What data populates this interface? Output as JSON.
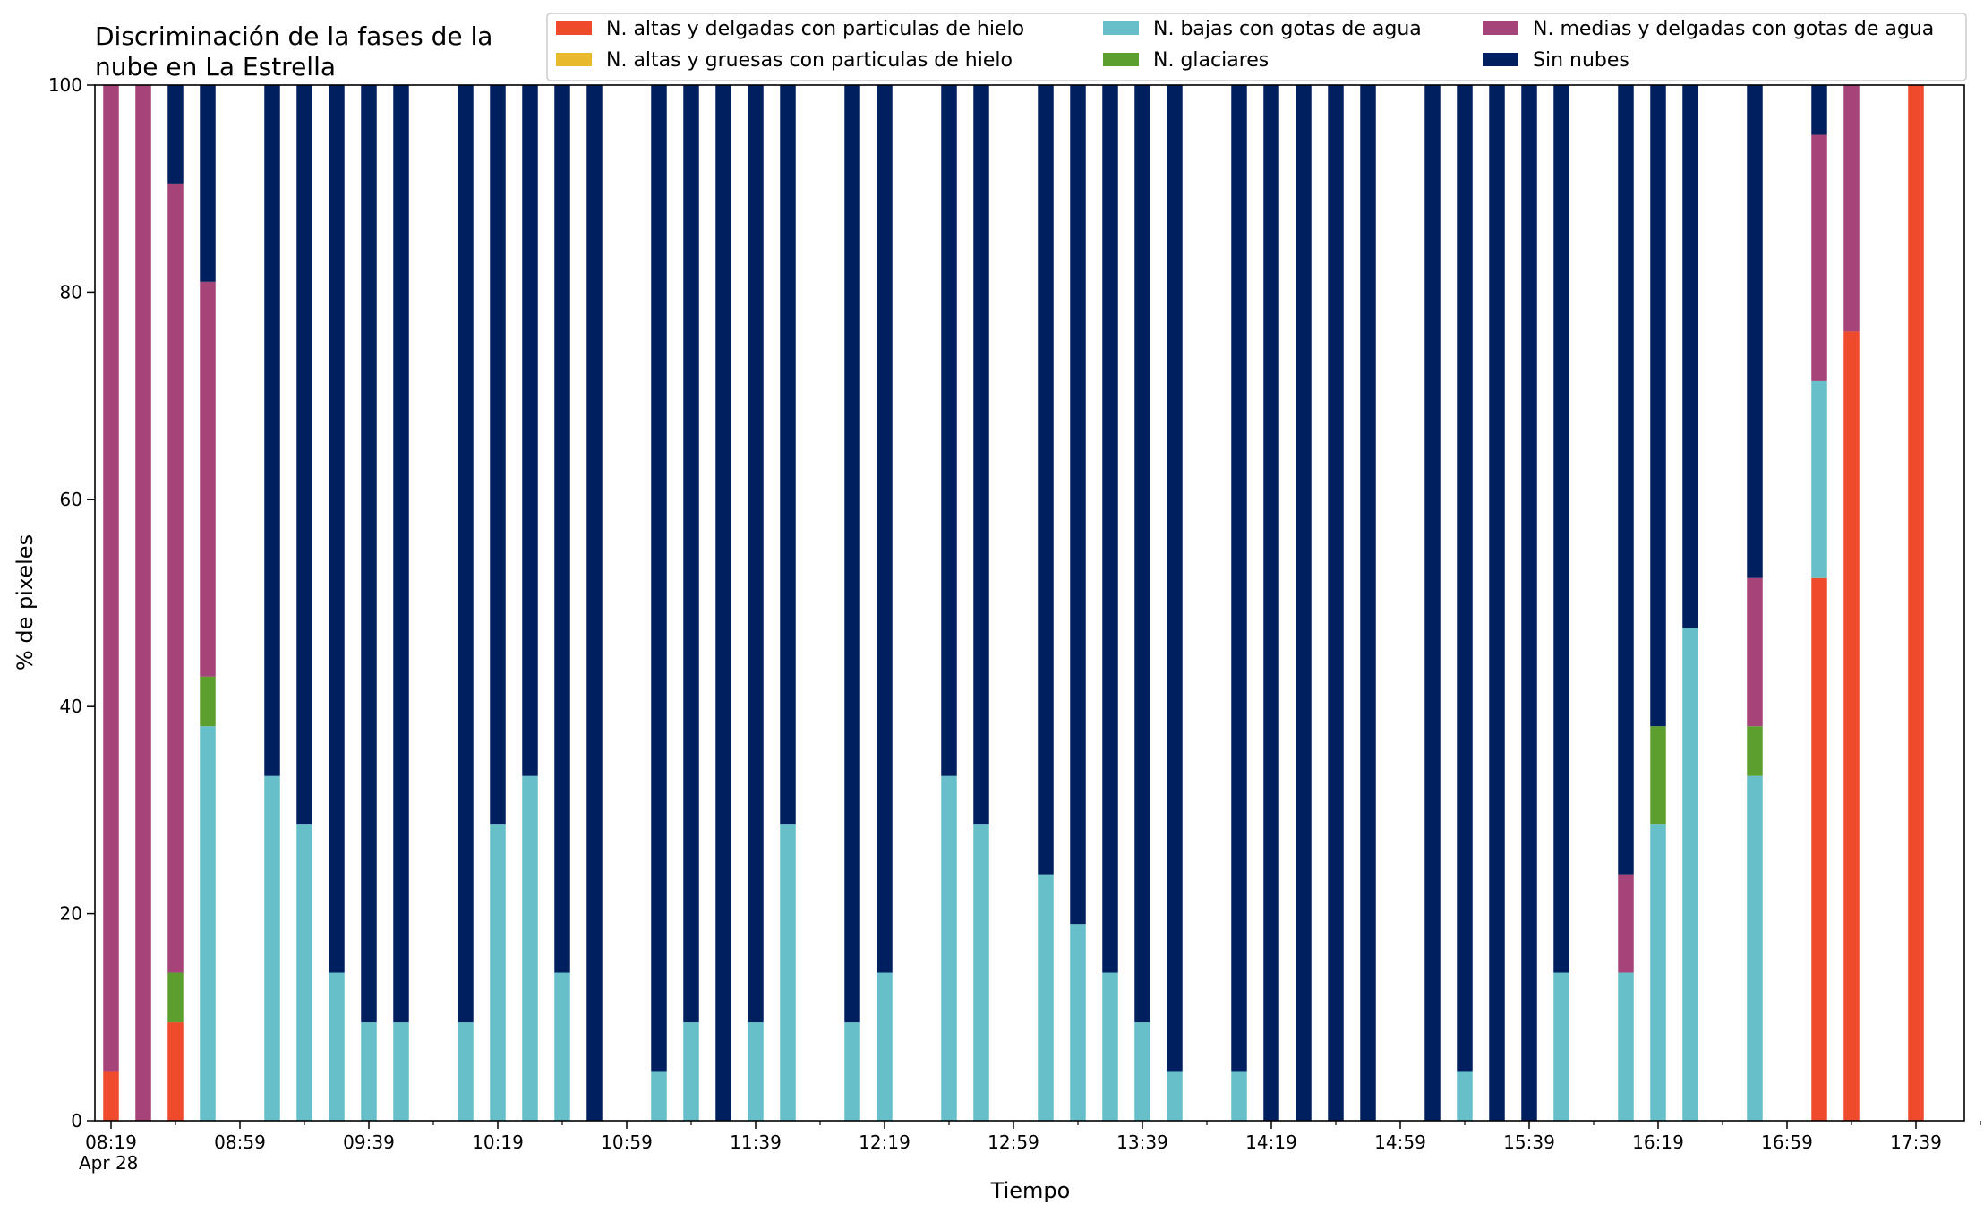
{
  "chart_data": {
    "type": "bar",
    "stacked": true,
    "title_lines": [
      "Discriminación de la fases de la",
      "nube en La Estrella"
    ],
    "xlabel": "Tiempo",
    "ylabel": "% de pixeles",
    "ylim": [
      0,
      100
    ],
    "yticks": [
      0,
      20,
      40,
      60,
      80,
      100
    ],
    "xlim": [
      "08:14",
      "17:54"
    ],
    "date_label": "Apr 28",
    "xticks_major": [
      "08:19",
      "08:59",
      "09:39",
      "10:19",
      "10:59",
      "11:39",
      "12:19",
      "12:59",
      "13:39",
      "14:19",
      "14:59",
      "15:39",
      "16:19",
      "16:59",
      "17:39"
    ],
    "xticks_minor": [
      "08:39",
      "09:19",
      "09:59",
      "10:39",
      "11:19",
      "11:59",
      "12:39",
      "13:19",
      "13:59",
      "14:39",
      "15:19",
      "15:59",
      "16:39",
      "17:19",
      "17:59"
    ],
    "grid": false,
    "legend_position": "top-right",
    "series": [
      {
        "key": "alt_del",
        "name": "N. altas y delgadas con particulas de hielo",
        "color": "#ee4a2b"
      },
      {
        "key": "alt_gru",
        "name": "N. altas y gruesas con particulas de hielo",
        "color": "#e8b92a"
      },
      {
        "key": "baj",
        "name": "N. bajas con gotas de agua",
        "color": "#67bfca"
      },
      {
        "key": "gla",
        "name": "N. glaciares",
        "color": "#5d9f2e"
      },
      {
        "key": "med",
        "name": "N. medias y delgadas con gotas de agua",
        "color": "#a6447a"
      },
      {
        "key": "sin",
        "name": "Sin nubes",
        "color": "#001f5f"
      }
    ],
    "bars": [
      {
        "x": "08:19",
        "alt_del": 4.8,
        "alt_gru": 0,
        "baj": 0,
        "gla": 0,
        "med": 95.2,
        "sin": 0
      },
      {
        "x": "08:29",
        "alt_del": 0,
        "alt_gru": 0,
        "baj": 0,
        "gla": 0,
        "med": 100,
        "sin": 0
      },
      {
        "x": "08:39",
        "alt_del": 9.5,
        "alt_gru": 0,
        "baj": 0,
        "gla": 4.8,
        "med": 76.2,
        "sin": 9.5
      },
      {
        "x": "08:49",
        "alt_del": 0,
        "alt_gru": 0,
        "baj": 38.1,
        "gla": 4.8,
        "med": 38.1,
        "sin": 19.0
      },
      {
        "x": "09:09",
        "alt_del": 0,
        "alt_gru": 0,
        "baj": 33.3,
        "gla": 0,
        "med": 0,
        "sin": 66.7
      },
      {
        "x": "09:19",
        "alt_del": 0,
        "alt_gru": 0,
        "baj": 28.6,
        "gla": 0,
        "med": 0,
        "sin": 71.4
      },
      {
        "x": "09:29",
        "alt_del": 0,
        "alt_gru": 0,
        "baj": 14.3,
        "gla": 0,
        "med": 0,
        "sin": 85.7
      },
      {
        "x": "09:39",
        "alt_del": 0,
        "alt_gru": 0,
        "baj": 9.5,
        "gla": 0,
        "med": 0,
        "sin": 90.5
      },
      {
        "x": "09:49",
        "alt_del": 0,
        "alt_gru": 0,
        "baj": 9.5,
        "gla": 0,
        "med": 0,
        "sin": 90.5
      },
      {
        "x": "10:09",
        "alt_del": 0,
        "alt_gru": 0,
        "baj": 9.5,
        "gla": 0,
        "med": 0,
        "sin": 90.5
      },
      {
        "x": "10:19",
        "alt_del": 0,
        "alt_gru": 0,
        "baj": 28.6,
        "gla": 0,
        "med": 0,
        "sin": 71.4
      },
      {
        "x": "10:29",
        "alt_del": 0,
        "alt_gru": 0,
        "baj": 33.3,
        "gla": 0,
        "med": 0,
        "sin": 66.7
      },
      {
        "x": "10:39",
        "alt_del": 0,
        "alt_gru": 0,
        "baj": 14.3,
        "gla": 0,
        "med": 0,
        "sin": 85.7
      },
      {
        "x": "10:49",
        "alt_del": 0,
        "alt_gru": 0,
        "baj": 0,
        "gla": 0,
        "med": 0,
        "sin": 100
      },
      {
        "x": "11:09",
        "alt_del": 0,
        "alt_gru": 0,
        "baj": 4.8,
        "gla": 0,
        "med": 0,
        "sin": 95.2
      },
      {
        "x": "11:19",
        "alt_del": 0,
        "alt_gru": 0,
        "baj": 9.5,
        "gla": 0,
        "med": 0,
        "sin": 90.5
      },
      {
        "x": "11:29",
        "alt_del": 0,
        "alt_gru": 0,
        "baj": 0,
        "gla": 0,
        "med": 0,
        "sin": 100
      },
      {
        "x": "11:39",
        "alt_del": 0,
        "alt_gru": 0,
        "baj": 9.5,
        "gla": 0,
        "med": 0,
        "sin": 90.5
      },
      {
        "x": "11:49",
        "alt_del": 0,
        "alt_gru": 0,
        "baj": 28.6,
        "gla": 0,
        "med": 0,
        "sin": 71.4
      },
      {
        "x": "12:09",
        "alt_del": 0,
        "alt_gru": 0,
        "baj": 9.5,
        "gla": 0,
        "med": 0,
        "sin": 90.5
      },
      {
        "x": "12:19",
        "alt_del": 0,
        "alt_gru": 0,
        "baj": 14.3,
        "gla": 0,
        "med": 0,
        "sin": 85.7
      },
      {
        "x": "12:39",
        "alt_del": 0,
        "alt_gru": 0,
        "baj": 33.3,
        "gla": 0,
        "med": 0,
        "sin": 66.7
      },
      {
        "x": "12:49",
        "alt_del": 0,
        "alt_gru": 0,
        "baj": 28.6,
        "gla": 0,
        "med": 0,
        "sin": 71.4
      },
      {
        "x": "13:09",
        "alt_del": 0,
        "alt_gru": 0,
        "baj": 23.8,
        "gla": 0,
        "med": 0,
        "sin": 76.2
      },
      {
        "x": "13:19",
        "alt_del": 0,
        "alt_gru": 0,
        "baj": 19.0,
        "gla": 0,
        "med": 0,
        "sin": 81.0
      },
      {
        "x": "13:29",
        "alt_del": 0,
        "alt_gru": 0,
        "baj": 14.3,
        "gla": 0,
        "med": 0,
        "sin": 85.7
      },
      {
        "x": "13:39",
        "alt_del": 0,
        "alt_gru": 0,
        "baj": 9.5,
        "gla": 0,
        "med": 0,
        "sin": 90.5
      },
      {
        "x": "13:49",
        "alt_del": 0,
        "alt_gru": 0,
        "baj": 4.8,
        "gla": 0,
        "med": 0,
        "sin": 95.2
      },
      {
        "x": "14:09",
        "alt_del": 0,
        "alt_gru": 0,
        "baj": 4.8,
        "gla": 0,
        "med": 0,
        "sin": 95.2
      },
      {
        "x": "14:19",
        "alt_del": 0,
        "alt_gru": 0,
        "baj": 0,
        "gla": 0,
        "med": 0,
        "sin": 100
      },
      {
        "x": "14:29",
        "alt_del": 0,
        "alt_gru": 0,
        "baj": 0,
        "gla": 0,
        "med": 0,
        "sin": 100
      },
      {
        "x": "14:39",
        "alt_del": 0,
        "alt_gru": 0,
        "baj": 0,
        "gla": 0,
        "med": 0,
        "sin": 100
      },
      {
        "x": "14:49",
        "alt_del": 0,
        "alt_gru": 0,
        "baj": 0,
        "gla": 0,
        "med": 0,
        "sin": 100
      },
      {
        "x": "15:09",
        "alt_del": 0,
        "alt_gru": 0,
        "baj": 0,
        "gla": 0,
        "med": 0,
        "sin": 100
      },
      {
        "x": "15:19",
        "alt_del": 0,
        "alt_gru": 0,
        "baj": 4.8,
        "gla": 0,
        "med": 0,
        "sin": 95.2
      },
      {
        "x": "15:29",
        "alt_del": 0,
        "alt_gru": 0,
        "baj": 0,
        "gla": 0,
        "med": 0,
        "sin": 100
      },
      {
        "x": "15:39",
        "alt_del": 0,
        "alt_gru": 0,
        "baj": 0,
        "gla": 0,
        "med": 0,
        "sin": 100
      },
      {
        "x": "15:49",
        "alt_del": 0,
        "alt_gru": 0,
        "baj": 14.3,
        "gla": 0,
        "med": 0,
        "sin": 85.7
      },
      {
        "x": "16:09",
        "alt_del": 0,
        "alt_gru": 0,
        "baj": 14.3,
        "gla": 0,
        "med": 9.5,
        "sin": 76.2
      },
      {
        "x": "16:19",
        "alt_del": 0,
        "alt_gru": 0,
        "baj": 28.6,
        "gla": 9.5,
        "med": 0,
        "sin": 61.9
      },
      {
        "x": "16:29",
        "alt_del": 0,
        "alt_gru": 0,
        "baj": 47.6,
        "gla": 0,
        "med": 0,
        "sin": 52.4
      },
      {
        "x": "16:49",
        "alt_del": 0,
        "alt_gru": 0,
        "baj": 33.3,
        "gla": 4.8,
        "med": 14.3,
        "sin": 47.6
      },
      {
        "x": "17:09",
        "alt_del": 52.4,
        "alt_gru": 0,
        "baj": 19.0,
        "gla": 0,
        "med": 23.8,
        "sin": 4.8
      },
      {
        "x": "17:19",
        "alt_del": 76.2,
        "alt_gru": 0,
        "baj": 0,
        "gla": 0,
        "med": 23.8,
        "sin": 0
      },
      {
        "x": "17:39",
        "alt_del": 100,
        "alt_gru": 0,
        "baj": 0,
        "gla": 0,
        "med": 0,
        "sin": 0
      }
    ]
  }
}
